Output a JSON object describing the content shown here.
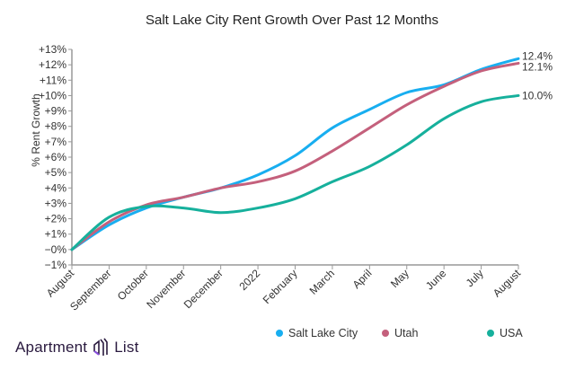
{
  "chart_data": {
    "type": "line",
    "title": "Salt Lake City Rent Growth Over Past 12 Months",
    "ylabel": "% Rent Growth",
    "xlabel": "",
    "categories": [
      "August",
      "September",
      "October",
      "November",
      "December",
      "2022",
      "February",
      "March",
      "April",
      "May",
      "June",
      "July",
      "August"
    ],
    "ylim": [
      -1,
      13
    ],
    "yticks": [
      "+13%",
      "+12%",
      "+11%",
      "+10%",
      "+9%",
      "+8%",
      "+7%",
      "+6%",
      "+5%",
      "+4%",
      "+3%",
      "+2%",
      "+1%",
      "−0%",
      "−1%"
    ],
    "grid": false,
    "legend_position": "bottom",
    "series": [
      {
        "name": "Salt Lake City",
        "color": "#18aef0",
        "end_label": "12.4%",
        "values": [
          0,
          1.6,
          2.7,
          3.4,
          4.0,
          4.85,
          6.1,
          7.9,
          9.1,
          10.2,
          10.7,
          11.7,
          12.4
        ]
      },
      {
        "name": "Utah",
        "color": "#c4607c",
        "end_label": "12.1%",
        "values": [
          0,
          1.8,
          2.9,
          3.4,
          4.0,
          4.4,
          5.1,
          6.4,
          7.9,
          9.4,
          10.6,
          11.6,
          12.1
        ]
      },
      {
        "name": "USA",
        "color": "#16b09c",
        "end_label": "10.0%",
        "values": [
          0,
          2.1,
          2.8,
          2.7,
          2.4,
          2.7,
          3.3,
          4.4,
          5.4,
          6.8,
          8.5,
          9.6,
          10.0
        ]
      }
    ]
  },
  "branding": {
    "logo_text_1": "Apartment",
    "logo_text_2": "List",
    "logo_color": "#2a1a3f",
    "logo_accent": "#8a4fe0"
  }
}
